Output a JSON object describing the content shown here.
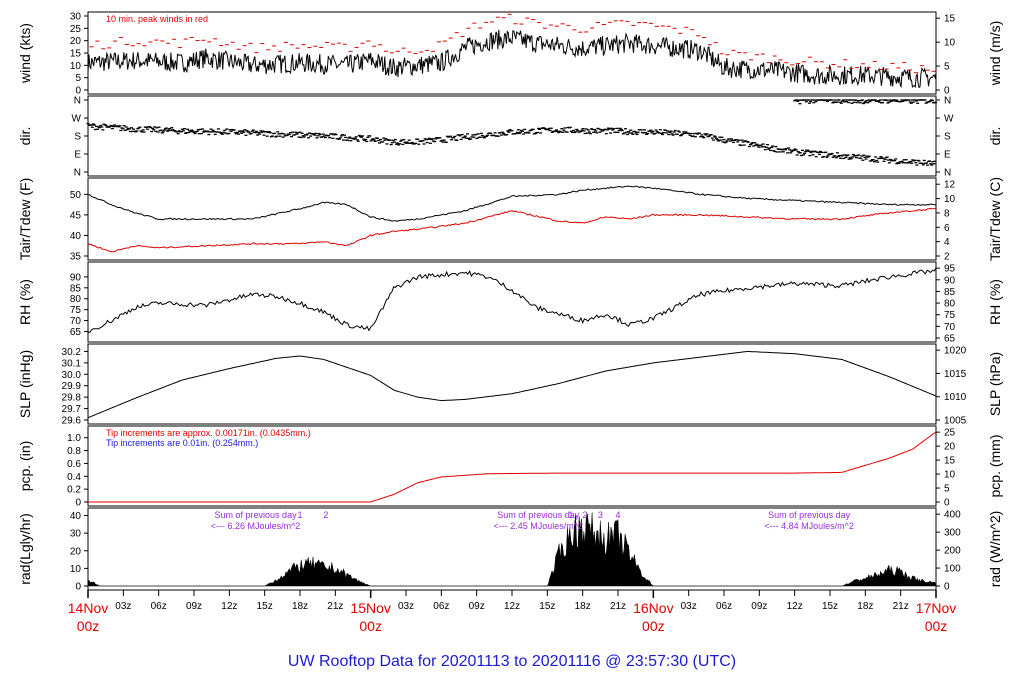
{
  "title": "UW Rooftop Data for 20201113  to  20201116 @ 23:57:30  (UTC)",
  "colors": {
    "title": "#1a1ad6",
    "peak": "#e00000",
    "annot": "#9a2be0",
    "date": "#e00000",
    "ink": "#000000"
  },
  "time_axis": {
    "minor_ticks": [
      "03z",
      "06z",
      "09z",
      "12z",
      "15z",
      "18z",
      "21z",
      "03z",
      "06z",
      "09z",
      "12z",
      "15z",
      "18z",
      "21z",
      "03z",
      "06z",
      "09z",
      "12z",
      "15z",
      "18z",
      "21z"
    ],
    "minor_hours": [
      3,
      6,
      9,
      12,
      15,
      18,
      21,
      27,
      30,
      33,
      36,
      39,
      42,
      45,
      51,
      54,
      57,
      60,
      63,
      66,
      69
    ],
    "major_dates": [
      {
        "date": "14Nov",
        "hour": "00z",
        "h": 0
      },
      {
        "date": "15Nov",
        "hour": "00z",
        "h": 24
      },
      {
        "date": "16Nov",
        "hour": "00z",
        "h": 48
      },
      {
        "date": "17Nov",
        "hour": "00z",
        "h": 72
      }
    ],
    "range_hours": [
      0,
      72
    ]
  },
  "chart_data": [
    {
      "type": "line",
      "id": "wind",
      "ylabel_left": "wind (kts)",
      "ylabel_right": "wind (m/s)",
      "yticks_left": [
        "0",
        "5",
        "10",
        "15",
        "20",
        "25",
        "30"
      ],
      "ylim": [
        0,
        30
      ],
      "yticks_right": [
        "0",
        "5",
        "10",
        "15"
      ],
      "annotation": "10 min. peak winds in red",
      "series": [
        {
          "x": [
            0,
            4,
            8,
            10,
            14,
            18,
            22,
            24,
            26,
            30,
            32,
            34,
            36,
            38,
            42,
            46,
            48,
            52,
            54,
            58,
            62,
            66,
            70,
            72
          ],
          "values": [
            11,
            12,
            11,
            13,
            10,
            11,
            10,
            12,
            9,
            11,
            17,
            20,
            21,
            19,
            17,
            19,
            18,
            16,
            9,
            8,
            6,
            6,
            5,
            5
          ]
        },
        {
          "x": [
            0,
            4,
            8,
            10,
            14,
            18,
            22,
            24,
            26,
            30,
            32,
            34,
            36,
            38,
            42,
            46,
            48,
            52,
            54,
            58,
            62,
            66,
            70,
            72
          ],
          "values": [
            18,
            20,
            19,
            21,
            17,
            18,
            17,
            20,
            15,
            18,
            24,
            28,
            29,
            27,
            25,
            27,
            26,
            23,
            15,
            13,
            11,
            10,
            9,
            8
          ]
        }
      ]
    },
    {
      "type": "scatter",
      "id": "dir",
      "ylabel_left": "dir.",
      "ylabel_right": "dir.",
      "yticks_left": [
        "N",
        "E",
        "S",
        "W",
        "N"
      ],
      "yticks_right": [
        "N",
        "E",
        "S",
        "W",
        "N"
      ],
      "ylim": [
        0,
        360
      ],
      "series": [
        {
          "x": [
            0,
            4,
            8,
            12,
            16,
            20,
            24,
            26,
            28,
            30,
            32,
            36,
            40,
            44,
            48,
            52,
            54,
            58,
            60,
            64,
            68,
            72
          ],
          "values": [
            230,
            215,
            205,
            200,
            190,
            180,
            165,
            150,
            150,
            160,
            175,
            200,
            210,
            205,
            200,
            185,
            160,
            120,
            100,
            80,
            60,
            40
          ]
        },
        {
          "x": [
            60,
            62,
            64,
            66,
            68,
            70,
            72
          ],
          "values": [
            355,
            360,
            358,
            357,
            359,
            356,
            358
          ]
        }
      ]
    },
    {
      "type": "line",
      "id": "temp",
      "ylabel_left": "Tair/Tdew (F)",
      "ylabel_right": "Tair/Tdew (C)",
      "yticks_left": [
        "35",
        "40",
        "45",
        "50"
      ],
      "ylim": [
        35,
        53
      ],
      "yticks_right": [
        "2",
        "4",
        "6",
        "8",
        "10",
        "12"
      ],
      "series": [
        {
          "name": "Tair",
          "x": [
            0,
            2,
            4,
            6,
            10,
            14,
            18,
            20,
            22,
            24,
            26,
            28,
            32,
            36,
            40,
            42,
            44,
            46,
            48,
            52,
            56,
            60,
            64,
            68,
            72
          ],
          "values": [
            50,
            47.5,
            45.5,
            44,
            44,
            44,
            46.5,
            48,
            47.5,
            44.5,
            43.5,
            44,
            46,
            49.5,
            50,
            51,
            51.5,
            52,
            51.5,
            50,
            49,
            48.5,
            48,
            47.5,
            47.5
          ]
        },
        {
          "name": "Tdew",
          "x": [
            0,
            2,
            4,
            6,
            10,
            14,
            18,
            20,
            22,
            24,
            26,
            28,
            32,
            36,
            40,
            42,
            44,
            46,
            48,
            52,
            56,
            60,
            64,
            68,
            72
          ],
          "values": [
            38,
            36,
            37.5,
            37,
            37.5,
            38,
            38,
            38.5,
            37.5,
            40,
            41,
            41.5,
            43,
            46,
            43.5,
            43,
            44.5,
            44,
            45,
            45,
            44.5,
            44,
            44,
            45.5,
            46.5
          ]
        }
      ]
    },
    {
      "type": "line",
      "id": "rh",
      "ylabel_left": "RH (%)",
      "ylabel_right": "RH (%)",
      "yticks_left": [
        "65",
        "70",
        "75",
        "80",
        "85",
        "90"
      ],
      "ylim": [
        62,
        95
      ],
      "yticks_right": [
        "65",
        "70",
        "75",
        "80",
        "85",
        "90",
        "95"
      ],
      "series": [
        {
          "x": [
            0,
            2,
            4,
            6,
            10,
            14,
            16,
            18,
            20,
            22,
            24,
            26,
            28,
            32,
            34,
            36,
            38,
            40,
            42,
            44,
            46,
            48,
            52,
            56,
            60,
            64,
            68,
            72
          ],
          "values": [
            65,
            70,
            76,
            78,
            77,
            82,
            81,
            78,
            74,
            68,
            66,
            85,
            90,
            92,
            90,
            84,
            76,
            73,
            70,
            73,
            68,
            71,
            82,
            85,
            87,
            86,
            90,
            93
          ]
        }
      ]
    },
    {
      "type": "line",
      "id": "slp",
      "ylabel_left": "SLP (inHg)",
      "ylabel_right": "SLP (hPa)",
      "yticks_left": [
        "29.6",
        "29.7",
        "29.8",
        "29.9",
        "30.0",
        "30.1",
        "30.2"
      ],
      "ylim": [
        29.6,
        30.23
      ],
      "yticks_right": [
        "1005",
        "1010",
        "1015",
        "1020"
      ],
      "series": [
        {
          "x": [
            0,
            4,
            8,
            12,
            16,
            18,
            20,
            24,
            26,
            28,
            30,
            32,
            36,
            40,
            44,
            48,
            52,
            56,
            60,
            64,
            68,
            72
          ],
          "values": [
            29.62,
            29.79,
            29.95,
            30.05,
            30.14,
            30.16,
            30.13,
            29.99,
            29.86,
            29.8,
            29.77,
            29.78,
            29.83,
            29.92,
            30.03,
            30.1,
            30.15,
            30.2,
            30.18,
            30.13,
            29.98,
            29.81
          ]
        }
      ]
    },
    {
      "type": "line",
      "id": "pcp",
      "ylabel_left": "pcp. (in)",
      "ylabel_right": "pcp. (mm)",
      "yticks_left": [
        "0",
        "0.2",
        "0.4",
        "0.6",
        "0.8",
        "1.0"
      ],
      "ylim": [
        0,
        1.12
      ],
      "yticks_right": [
        "0",
        "5",
        "10",
        "15",
        "20",
        "25"
      ],
      "annotation_red": "Tip increments are approx. 0.00171in. (0.0435mm.)",
      "annotation_blue": "Tip increments are 0.01in. (0.254mm.)",
      "series": [
        {
          "x": [
            0,
            24,
            26,
            28,
            30,
            34,
            40,
            48,
            56,
            60,
            64,
            68,
            70,
            72
          ],
          "values": [
            0,
            0,
            0.12,
            0.3,
            0.39,
            0.44,
            0.45,
            0.45,
            0.45,
            0.45,
            0.46,
            0.68,
            0.82,
            1.09
          ]
        }
      ]
    },
    {
      "type": "area",
      "id": "rad",
      "ylabel_left": "rad(Lgly/hr)",
      "ylabel_right": "rad (W/m^2)",
      "yticks_left": [
        "0",
        "10",
        "20",
        "30",
        "40"
      ],
      "ylim": [
        0,
        42
      ],
      "yticks_right": [
        "0",
        "100",
        "200",
        "300",
        "400"
      ],
      "day_notes": [
        {
          "x": 11,
          "line1": "Sum of previous day",
          "line2": "<--- 6.26 MJoules/m^2",
          "markers": [
            "1",
            "2"
          ],
          "marker_x": [
            18,
            20.2
          ]
        },
        {
          "x": 35,
          "line1": "Sum of previous day",
          "line2": "<--- 2.45 MJoules/m^2",
          "markers": [
            "1",
            "2",
            "3",
            "4"
          ],
          "marker_x": [
            41,
            42.2,
            43.5,
            45
          ]
        },
        {
          "x": 58,
          "line1": "Sum of previous day",
          "line2": "<--- 4.84 MJoules/m^2",
          "markers": [],
          "marker_x": []
        }
      ],
      "series": [
        {
          "x": [
            0,
            0.5,
            1,
            15,
            16,
            17,
            18,
            19,
            20,
            21,
            22,
            23,
            24,
            39,
            40,
            41,
            42,
            43,
            44,
            45,
            46,
            47,
            48,
            64,
            65,
            66,
            67,
            68,
            69,
            70,
            71,
            72
          ],
          "values": [
            3,
            2,
            0,
            0,
            4,
            9,
            13,
            14,
            12,
            11,
            7,
            3,
            0,
            0,
            20,
            33,
            38,
            34,
            30,
            32,
            20,
            8,
            0,
            0,
            3,
            5,
            7,
            10,
            9,
            5,
            3,
            2
          ]
        }
      ]
    }
  ]
}
